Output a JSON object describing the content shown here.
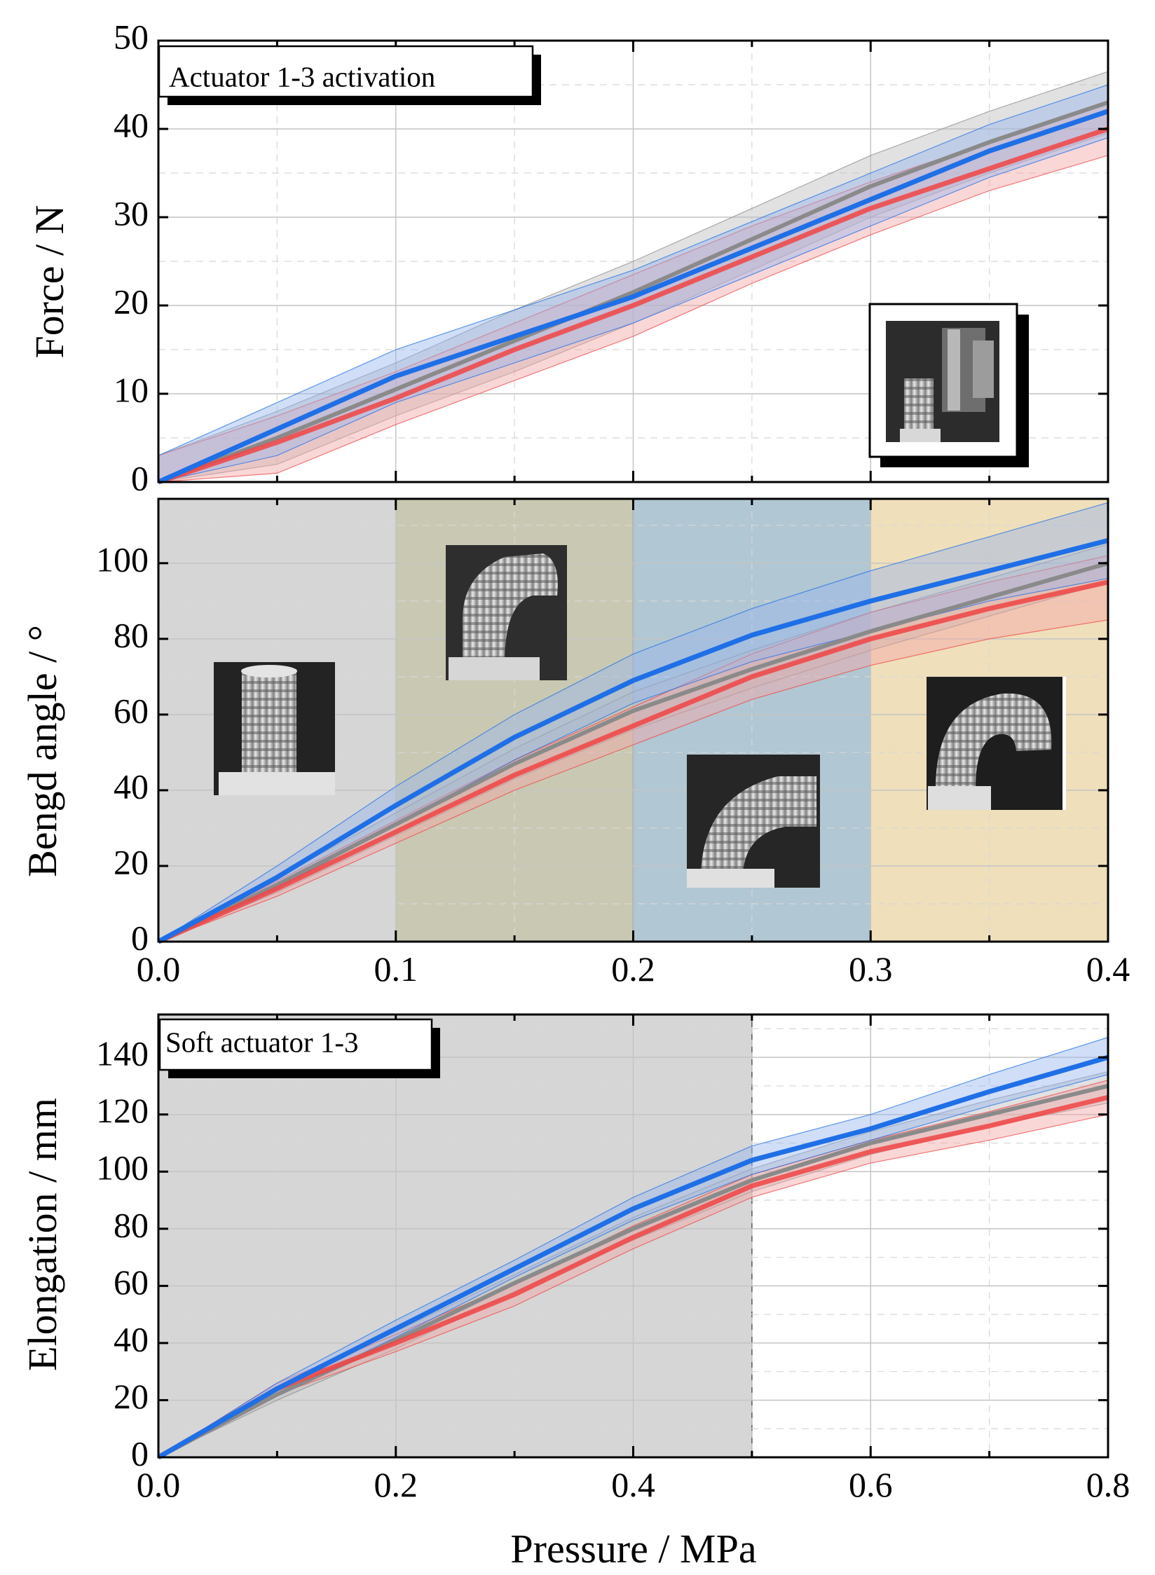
{
  "colors": {
    "series_blue": "#1f6fe6",
    "series_red": "#f04444",
    "series_gray": "#8a8a8a",
    "band_blue": "#9ab6ee",
    "band_red": "#f4a6a6",
    "band_gray": "#bdbdbd",
    "region_gray": "#d6d6d6",
    "region_olive": "#c9c9b3",
    "region_blue": "#b1c7d3",
    "region_sand": "#efdfbb"
  },
  "chart_data": [
    {
      "type": "line",
      "id": "force",
      "title": "Actuator 1-3 activation",
      "ylabel": "Force / N",
      "xlabel": "",
      "xlim": [
        0,
        0.4
      ],
      "ylim": [
        0,
        50
      ],
      "yticks": [
        "0",
        "10",
        "20",
        "30",
        "40",
        "50"
      ],
      "xticks": [],
      "grid": true,
      "inset_image": "actuator-force-test-photo",
      "series": [
        {
          "name": "gray",
          "color": "series_gray",
          "x": [
            0,
            0.05,
            0.1,
            0.15,
            0.2,
            0.25,
            0.3,
            0.35,
            0.4
          ],
          "y": [
            0,
            5,
            10.5,
            16,
            21.5,
            27.5,
            33.5,
            38.5,
            43
          ],
          "lo": [
            -3,
            2,
            7.5,
            12.5,
            18,
            24,
            30,
            35,
            39.5
          ],
          "hi": [
            3,
            8,
            13.5,
            19.5,
            25,
            31,
            37,
            42,
            46.5
          ]
        },
        {
          "name": "red",
          "color": "series_red",
          "x": [
            0,
            0.05,
            0.1,
            0.15,
            0.2,
            0.25,
            0.3,
            0.35,
            0.4
          ],
          "y": [
            0,
            4.5,
            9.5,
            15,
            20,
            25.5,
            31,
            35.5,
            40
          ],
          "lo": [
            -3,
            1,
            6.5,
            11.5,
            16.5,
            22.5,
            28,
            33,
            37
          ],
          "hi": [
            3,
            7.5,
            12.5,
            18,
            23.5,
            29,
            34,
            38.5,
            43
          ]
        },
        {
          "name": "blue",
          "color": "series_blue",
          "x": [
            0,
            0.05,
            0.1,
            0.15,
            0.2,
            0.25,
            0.3,
            0.35,
            0.4
          ],
          "y": [
            0,
            6,
            12,
            16.5,
            21,
            26.5,
            32,
            37.5,
            42
          ],
          "lo": [
            -3,
            3,
            9,
            13.5,
            18,
            23.5,
            29,
            34.5,
            39
          ],
          "hi": [
            3,
            9,
            15,
            19.5,
            24,
            29.5,
            35,
            40.5,
            45
          ]
        }
      ]
    },
    {
      "type": "line",
      "id": "bending",
      "title": "",
      "ylabel": "Bengd angle / °",
      "xlabel": "",
      "xlim": [
        0,
        0.4
      ],
      "ylim": [
        0,
        117
      ],
      "yticks": [
        "0",
        "20",
        "40",
        "60",
        "80",
        "100"
      ],
      "xticks": [
        "0.0",
        "0.1",
        "0.2",
        "0.3",
        "0.4"
      ],
      "grid": true,
      "regions": [
        {
          "x0": 0,
          "x1": 0.1,
          "color": "region_gray",
          "image": "actuator-straight-photo"
        },
        {
          "x0": 0.1,
          "x1": 0.2,
          "color": "region_olive",
          "image": "actuator-slight-bend-photo"
        },
        {
          "x0": 0.2,
          "x1": 0.3,
          "color": "region_blue",
          "image": "actuator-half-bend-photo"
        },
        {
          "x0": 0.3,
          "x1": 0.4,
          "color": "region_sand",
          "image": "actuator-full-bend-photo"
        }
      ],
      "series": [
        {
          "name": "gray",
          "color": "series_gray",
          "x": [
            0,
            0.05,
            0.1,
            0.15,
            0.2,
            0.25,
            0.3,
            0.35,
            0.4
          ],
          "y": [
            0,
            15,
            31,
            47,
            61,
            72,
            82,
            91,
            100
          ],
          "lo": [
            0,
            13,
            28,
            43,
            56,
            67,
            77,
            86,
            95
          ],
          "hi": [
            0,
            17,
            34,
            51,
            66,
            77,
            87,
            96,
            105
          ]
        },
        {
          "name": "red",
          "color": "series_red",
          "x": [
            0,
            0.05,
            0.1,
            0.15,
            0.2,
            0.25,
            0.3,
            0.35,
            0.4
          ],
          "y": [
            0,
            14,
            29,
            44,
            57,
            70,
            80,
            88,
            95
          ],
          "lo": [
            0,
            12,
            26,
            40,
            52,
            64,
            73,
            80,
            85
          ],
          "hi": [
            0,
            16,
            32,
            48,
            62,
            76,
            87,
            95,
            102
          ]
        },
        {
          "name": "blue",
          "color": "series_blue",
          "x": [
            0,
            0.05,
            0.1,
            0.15,
            0.2,
            0.25,
            0.3,
            0.35,
            0.4
          ],
          "y": [
            0,
            17,
            36,
            54,
            69,
            81,
            90,
            98,
            106
          ],
          "lo": [
            0,
            14,
            31,
            48,
            63,
            74,
            82,
            90,
            96
          ],
          "hi": [
            0,
            20,
            41,
            60,
            76,
            88,
            98,
            107,
            116
          ]
        }
      ]
    },
    {
      "type": "line",
      "id": "elongation",
      "title": "Soft actuator 1-3",
      "ylabel": "Elongation / mm",
      "xlabel": "Pressure / MPa",
      "xlim": [
        0,
        0.8
      ],
      "ylim": [
        0,
        155
      ],
      "yticks": [
        "0",
        "20",
        "40",
        "60",
        "80",
        "100",
        "120",
        "140"
      ],
      "xticks": [
        "0.0",
        "0.2",
        "0.4",
        "0.6",
        "0.8"
      ],
      "grid": true,
      "regions": [
        {
          "x0": 0,
          "x1": 0.5,
          "color": "region_gray"
        }
      ],
      "series": [
        {
          "name": "gray",
          "color": "series_gray",
          "x": [
            0,
            0.1,
            0.2,
            0.3,
            0.4,
            0.5,
            0.6,
            0.7,
            0.8
          ],
          "y": [
            0,
            22,
            41,
            61,
            80,
            97,
            110,
            120,
            130
          ],
          "lo": [
            0,
            20,
            38,
            58,
            76,
            93,
            106,
            116,
            124
          ],
          "hi": [
            0,
            24,
            44,
            64,
            84,
            101,
            114,
            125,
            135
          ]
        },
        {
          "name": "red",
          "color": "series_red",
          "x": [
            0,
            0.1,
            0.2,
            0.3,
            0.4,
            0.5,
            0.6,
            0.7,
            0.8
          ],
          "y": [
            0,
            24,
            40,
            57,
            77,
            95,
            107,
            116,
            126
          ],
          "lo": [
            0,
            22,
            37,
            53,
            73,
            91,
            103,
            111,
            120
          ],
          "hi": [
            0,
            26,
            43,
            61,
            81,
            99,
            111,
            121,
            132
          ]
        },
        {
          "name": "blue",
          "color": "series_blue",
          "x": [
            0,
            0.1,
            0.2,
            0.3,
            0.4,
            0.5,
            0.6,
            0.7,
            0.8
          ],
          "y": [
            0,
            24,
            45,
            66,
            87,
            104,
            115,
            128,
            140
          ],
          "lo": [
            0,
            22,
            42,
            63,
            83,
            99,
            111,
            123,
            134
          ],
          "hi": [
            0,
            26,
            48,
            69,
            91,
            109,
            120,
            134,
            147
          ]
        }
      ]
    }
  ]
}
